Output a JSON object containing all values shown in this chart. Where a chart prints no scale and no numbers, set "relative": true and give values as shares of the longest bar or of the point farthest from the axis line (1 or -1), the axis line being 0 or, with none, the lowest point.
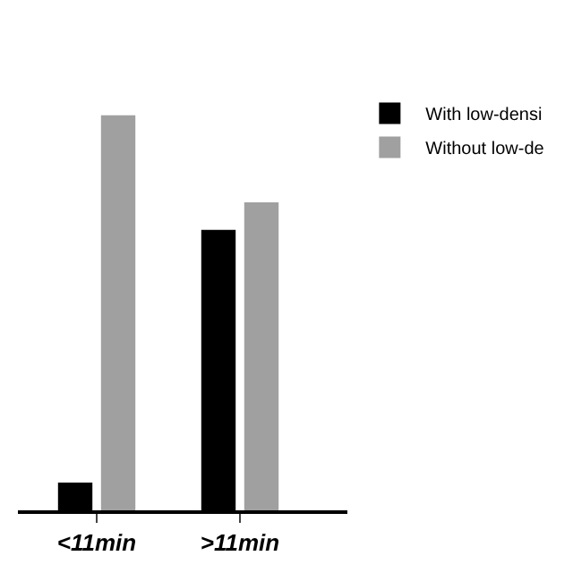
{
  "chart_data": {
    "type": "bar",
    "relative": true,
    "categories": [
      "<11min",
      ">11min"
    ],
    "series": [
      {
        "name": "With low-densi",
        "color": "#000000",
        "values": [
          0.07,
          0.71
        ]
      },
      {
        "name": "Without low-de",
        "color": "#a0a0a0",
        "values": [
          1,
          0.78
        ]
      }
    ],
    "legend": "top right"
  }
}
